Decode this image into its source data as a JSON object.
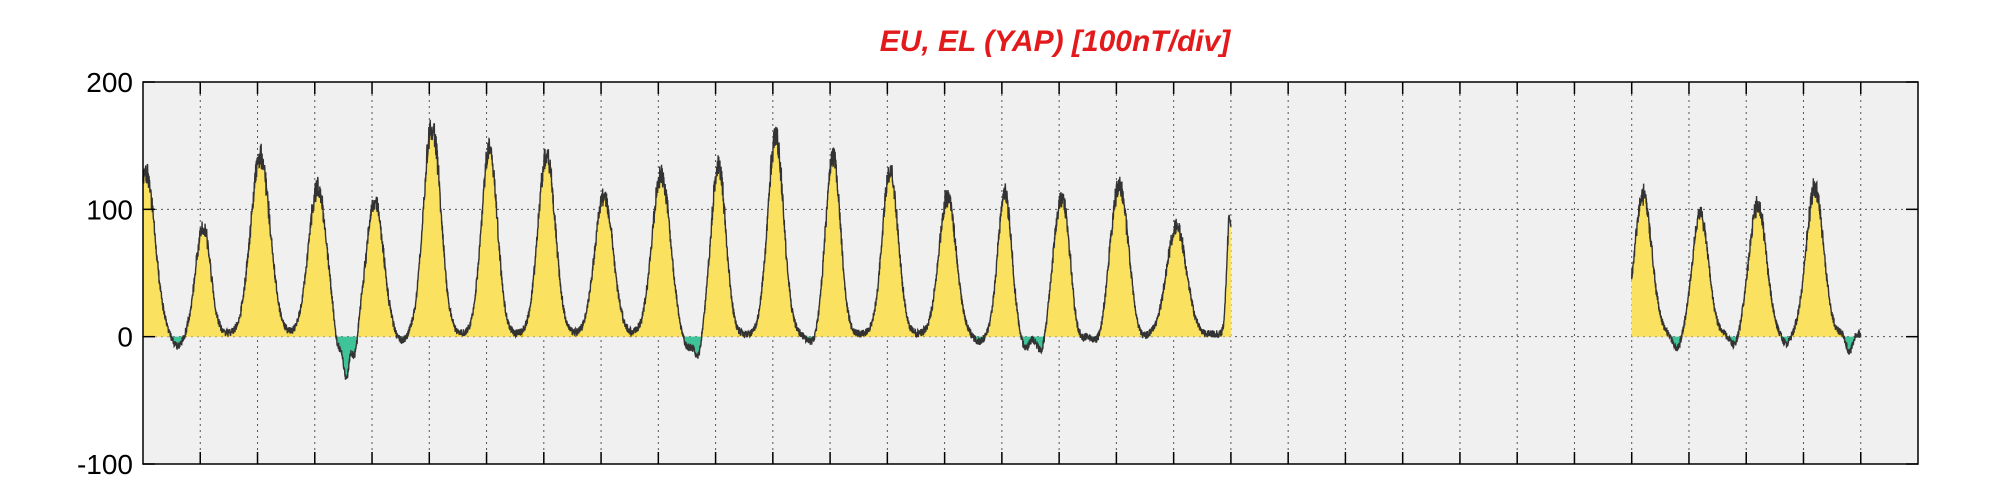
{
  "chart_data": {
    "type": "area",
    "title": "EU, EL (YAP)  [100nT/div]",
    "xlabel": "",
    "ylabel": "",
    "ylim": [
      -100,
      200
    ],
    "yticks": [
      {
        "value": 200,
        "label": "200"
      },
      {
        "value": 100,
        "label": "100"
      },
      {
        "value": 0,
        "label": "0"
      },
      {
        "value": -100,
        "label": "-100"
      }
    ],
    "xlim": [
      0,
      31
    ],
    "x_divisions": 31,
    "grid": true,
    "legend": "none",
    "colors": {
      "positive_fill": "#f5c800",
      "negative_fill": "#3fc49a",
      "line": "#333333",
      "plot_bg": "#f0f0f0",
      "title": "#e31a1c"
    },
    "series": [
      {
        "segments": [
          {
            "x_start": 0.0,
            "x_end": 19.0,
            "baseline": 2,
            "peaks": [
              {
                "x": 0.05,
                "value": 128,
                "width": 0.16
              },
              {
                "x": 1.05,
                "value": 85,
                "width": 0.13
              },
              {
                "x": 2.05,
                "value": 140,
                "width": 0.17
              },
              {
                "x": 3.05,
                "value": 115,
                "width": 0.16
              },
              {
                "x": 4.05,
                "value": 105,
                "width": 0.15
              },
              {
                "x": 5.05,
                "value": 165,
                "width": 0.15
              },
              {
                "x": 6.05,
                "value": 145,
                "width": 0.14
              },
              {
                "x": 7.05,
                "value": 142,
                "width": 0.15
              },
              {
                "x": 8.05,
                "value": 110,
                "width": 0.16
              },
              {
                "x": 9.05,
                "value": 125,
                "width": 0.16
              },
              {
                "x": 10.05,
                "value": 132,
                "width": 0.13
              },
              {
                "x": 11.05,
                "value": 155,
                "width": 0.14
              },
              {
                "x": 12.05,
                "value": 140,
                "width": 0.13
              },
              {
                "x": 13.05,
                "value": 128,
                "width": 0.14
              },
              {
                "x": 14.05,
                "value": 108,
                "width": 0.15
              },
              {
                "x": 15.05,
                "value": 112,
                "width": 0.12
              },
              {
                "x": 16.05,
                "value": 108,
                "width": 0.15
              },
              {
                "x": 17.05,
                "value": 117,
                "width": 0.16
              },
              {
                "x": 18.05,
                "value": 85,
                "width": 0.17
              },
              {
                "x": 18.98,
                "value": 93,
                "width": 0.05
              }
            ],
            "dips": [
              {
                "x": 0.6,
                "value": -10,
                "width": 0.1
              },
              {
                "x": 3.4,
                "value": -18,
                "width": 0.06
              },
              {
                "x": 3.55,
                "value": -35,
                "width": 0.05
              },
              {
                "x": 3.7,
                "value": -22,
                "width": 0.05
              },
              {
                "x": 4.5,
                "value": -6,
                "width": 0.1
              },
              {
                "x": 9.5,
                "value": -12,
                "width": 0.1
              },
              {
                "x": 9.7,
                "value": -18,
                "width": 0.06
              },
              {
                "x": 11.7,
                "value": -8,
                "width": 0.1
              },
              {
                "x": 14.6,
                "value": -6,
                "width": 0.1
              },
              {
                "x": 15.4,
                "value": -12,
                "width": 0.08
              },
              {
                "x": 15.7,
                "value": -18,
                "width": 0.08
              },
              {
                "x": 16.3,
                "value": -15,
                "width": 0.1
              },
              {
                "x": 16.7,
                "value": -10,
                "width": 0.1
              },
              {
                "x": 17.4,
                "value": -6,
                "width": 0.1
              }
            ]
          },
          {
            "x_start": 26.0,
            "x_end": 30.0,
            "baseline": 2,
            "peaks": [
              {
                "x": 26.2,
                "value": 110,
                "width": 0.15
              },
              {
                "x": 27.2,
                "value": 95,
                "width": 0.14
              },
              {
                "x": 28.2,
                "value": 102,
                "width": 0.15
              },
              {
                "x": 29.2,
                "value": 115,
                "width": 0.15
              }
            ],
            "dips": [
              {
                "x": 26.8,
                "value": -12,
                "width": 0.08
              },
              {
                "x": 27.8,
                "value": -10,
                "width": 0.08
              },
              {
                "x": 28.7,
                "value": -8,
                "width": 0.08
              },
              {
                "x": 29.8,
                "value": -15,
                "width": 0.05
              }
            ]
          }
        ]
      }
    ]
  }
}
